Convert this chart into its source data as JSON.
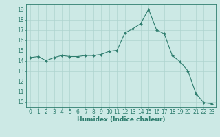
{
  "x": [
    0,
    1,
    2,
    3,
    4,
    5,
    6,
    7,
    8,
    9,
    10,
    11,
    12,
    13,
    14,
    15,
    16,
    17,
    18,
    19,
    20,
    21,
    22,
    23
  ],
  "y": [
    14.3,
    14.4,
    14.0,
    14.3,
    14.5,
    14.4,
    14.4,
    14.5,
    14.5,
    14.6,
    14.9,
    15.0,
    16.7,
    17.1,
    17.6,
    19.0,
    17.0,
    16.6,
    14.5,
    13.9,
    13.0,
    10.8,
    9.9,
    9.8
  ],
  "line_color": "#2e7d6e",
  "marker": "D",
  "marker_size": 2.0,
  "background_color": "#cce9e5",
  "grid_color": "#aed4cf",
  "xlabel": "Humidex (Indice chaleur)",
  "xlim": [
    -0.5,
    23.5
  ],
  "ylim": [
    9.5,
    19.5
  ],
  "yticks": [
    10,
    11,
    12,
    13,
    14,
    15,
    16,
    17,
    18,
    19
  ],
  "xticks": [
    0,
    1,
    2,
    3,
    4,
    5,
    6,
    7,
    8,
    9,
    10,
    11,
    12,
    13,
    14,
    15,
    16,
    17,
    18,
    19,
    20,
    21,
    22,
    23
  ],
  "tick_fontsize": 5.5,
  "xlabel_fontsize": 6.5,
  "tick_color": "#2e7d6e",
  "spine_color": "#2e7d6e"
}
